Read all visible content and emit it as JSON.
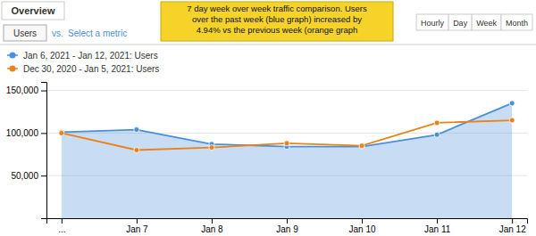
{
  "chart_data": {
    "type": "line",
    "categories": [
      "...",
      "Jan 7",
      "Jan 8",
      "Jan 9",
      "Jan 10",
      "Jan 11",
      "Jan 12"
    ],
    "series": [
      {
        "name": "Jan 6, 2021 - Jan 12, 2021: Users",
        "type": "area",
        "color": "#4a90d9",
        "values": [
          101000,
          104000,
          87000,
          84000,
          84000,
          98000,
          135000
        ]
      },
      {
        "name": "Dec 30, 2020 - Jan 5, 2021: Users",
        "type": "line",
        "color": "#e8821a",
        "values": [
          100000,
          80000,
          83000,
          88000,
          85000,
          112000,
          115000
        ]
      }
    ],
    "ylim": [
      0,
      160000
    ],
    "yticks": [
      {
        "value": 50000,
        "label": "50,000"
      },
      {
        "value": 100000,
        "label": "100,000"
      },
      {
        "value": 150000,
        "label": "150,000"
      }
    ],
    "grid": true,
    "marker": "circle",
    "annotations": [
      "Overview",
      "Users",
      "vs.",
      "Select a metric",
      "7 day week over week traffic comparison. Users\nover the past week (blue graph) increased by\n4.94% vs the previous week (orange graph",
      "Hourly",
      "Day",
      "Week",
      "Month"
    ]
  }
}
